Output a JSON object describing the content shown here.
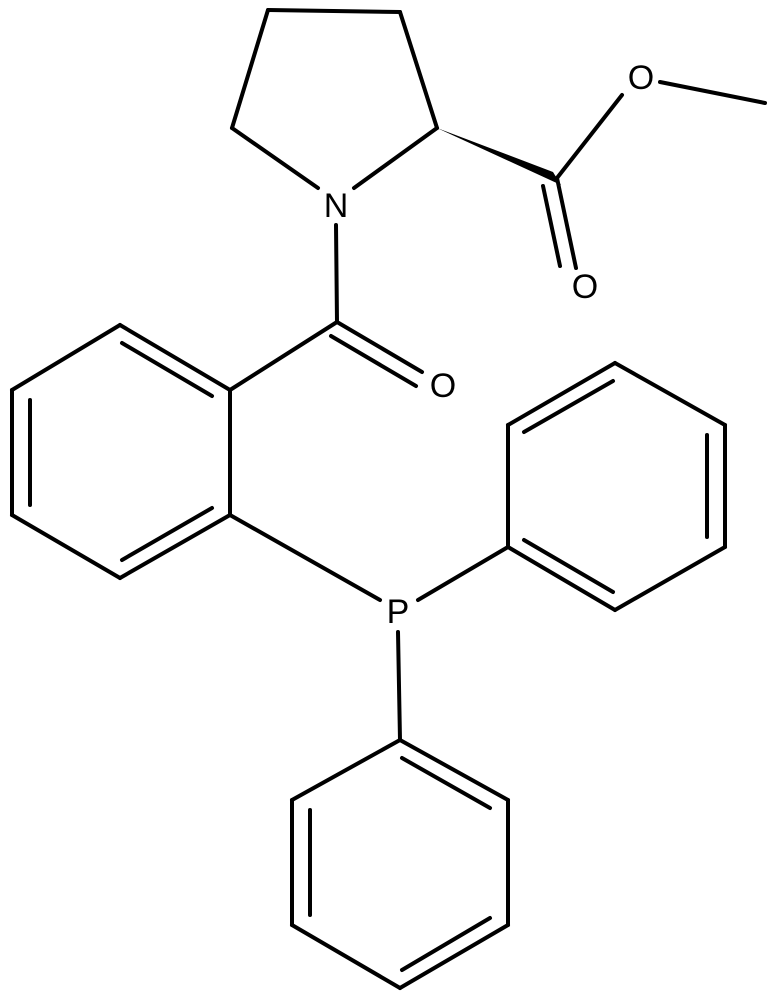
{
  "atoms": [
    {
      "label": "N"
    },
    {
      "label": "O"
    },
    {
      "label": "O"
    },
    {
      "label": "O"
    },
    {
      "label": "P"
    }
  ]
}
